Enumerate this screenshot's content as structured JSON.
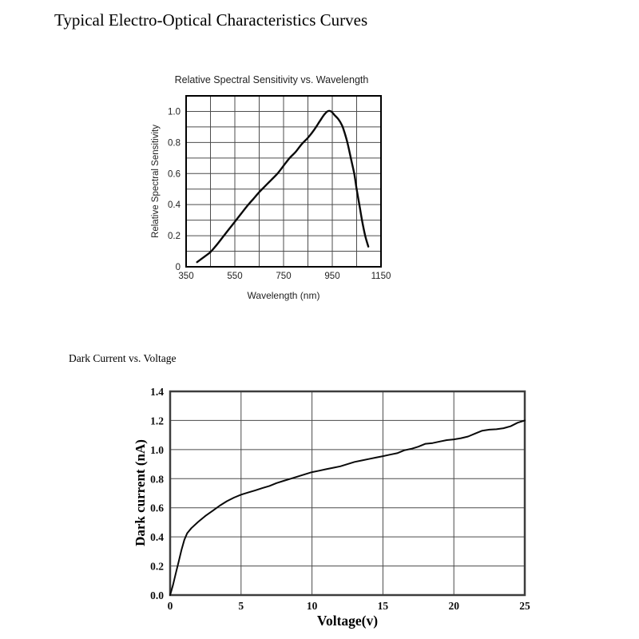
{
  "page": {
    "title": "Typical Electro-Optical Characteristics Curves"
  },
  "chart_data": [
    {
      "id": "spectral-sensitivity",
      "type": "line",
      "title": "Relative Spectral Sensitivity vs. Wavelength",
      "xlabel": "Wavelength (nm)",
      "ylabel": "Relative Spectral Sensitivity",
      "xlim": [
        350,
        1150
      ],
      "ylim": [
        0,
        1.1
      ],
      "x_gridstep": 100,
      "y_gridstep": 0.1,
      "grid": true,
      "legend": "none",
      "xticks": [
        350,
        550,
        750,
        950,
        1150
      ],
      "xtick_labels": [
        "350",
        "550",
        "750",
        "950",
        "1150"
      ],
      "yticks": [
        1.0,
        0.8,
        0.6,
        0.4,
        0.2,
        0
      ],
      "ytick_labels": [
        "1.0",
        "0.8",
        "0.6",
        "0.4",
        "0.2",
        "0"
      ],
      "series": [
        {
          "name": "relative-spectral-sensitivity",
          "smooth": true,
          "points": [
            [
              395,
              0.03
            ],
            [
              425,
              0.065
            ],
            [
              450,
              0.095
            ],
            [
              475,
              0.14
            ],
            [
              500,
              0.19
            ],
            [
              525,
              0.24
            ],
            [
              550,
              0.29
            ],
            [
              575,
              0.34
            ],
            [
              600,
              0.39
            ],
            [
              625,
              0.435
            ],
            [
              650,
              0.48
            ],
            [
              675,
              0.52
            ],
            [
              700,
              0.56
            ],
            [
              725,
              0.6
            ],
            [
              750,
              0.65
            ],
            [
              775,
              0.7
            ],
            [
              800,
              0.74
            ],
            [
              825,
              0.79
            ],
            [
              850,
              0.83
            ],
            [
              875,
              0.88
            ],
            [
              900,
              0.94
            ],
            [
              915,
              0.975
            ],
            [
              930,
              1.0
            ],
            [
              945,
              1.0
            ],
            [
              960,
              0.975
            ],
            [
              975,
              0.95
            ],
            [
              990,
              0.91
            ],
            [
              1000,
              0.865
            ],
            [
              1012,
              0.8
            ],
            [
              1026,
              0.7
            ],
            [
              1040,
              0.6
            ],
            [
              1050,
              0.5
            ],
            [
              1061,
              0.4
            ],
            [
              1072,
              0.3
            ],
            [
              1085,
              0.2
            ],
            [
              1098,
              0.13
            ]
          ]
        }
      ]
    },
    {
      "id": "dark-current",
      "type": "line",
      "title": "Dark Current vs. Voltage",
      "xlabel": "Voltage(v)",
      "ylabel": "Dark current (nA)",
      "xlim": [
        0,
        25
      ],
      "ylim": [
        0,
        1.4
      ],
      "x_gridstep": 5,
      "y_gridstep": 0.2,
      "grid": true,
      "legend": "none",
      "xticks": [
        0,
        5,
        10,
        15,
        20,
        25
      ],
      "xtick_labels": [
        "0",
        "5",
        "10",
        "15",
        "20",
        "25"
      ],
      "yticks": [
        1.4,
        1.2,
        1.0,
        0.8,
        0.6,
        0.4,
        0.2,
        0.0
      ],
      "ytick_labels": [
        "1.4",
        "1.2",
        "1.0",
        "0.8",
        "0.6",
        "0.4",
        "0.2",
        "0.0"
      ],
      "series": [
        {
          "name": "dark-current",
          "smooth": false,
          "points": [
            [
              0,
              0.0
            ],
            [
              0.2,
              0.07
            ],
            [
              0.4,
              0.15
            ],
            [
              0.6,
              0.23
            ],
            [
              0.8,
              0.31
            ],
            [
              1.0,
              0.38
            ],
            [
              1.2,
              0.425
            ],
            [
              1.5,
              0.46
            ],
            [
              2.0,
              0.505
            ],
            [
              2.5,
              0.545
            ],
            [
              3.0,
              0.58
            ],
            [
              3.5,
              0.615
            ],
            [
              4.0,
              0.645
            ],
            [
              4.5,
              0.67
            ],
            [
              5.0,
              0.69
            ],
            [
              5.5,
              0.705
            ],
            [
              6.0,
              0.72
            ],
            [
              6.5,
              0.735
            ],
            [
              7.0,
              0.75
            ],
            [
              7.5,
              0.77
            ],
            [
              8.0,
              0.785
            ],
            [
              8.5,
              0.8
            ],
            [
              9.0,
              0.815
            ],
            [
              9.5,
              0.83
            ],
            [
              10.0,
              0.845
            ],
            [
              10.5,
              0.855
            ],
            [
              11.0,
              0.865
            ],
            [
              11.5,
              0.875
            ],
            [
              12.0,
              0.885
            ],
            [
              12.5,
              0.9
            ],
            [
              13.0,
              0.915
            ],
            [
              13.5,
              0.925
            ],
            [
              14.0,
              0.935
            ],
            [
              14.5,
              0.945
            ],
            [
              15.0,
              0.955
            ],
            [
              15.5,
              0.965
            ],
            [
              16.0,
              0.975
            ],
            [
              16.5,
              0.995
            ],
            [
              17.0,
              1.005
            ],
            [
              17.5,
              1.02
            ],
            [
              18.0,
              1.04
            ],
            [
              18.5,
              1.045
            ],
            [
              19.0,
              1.055
            ],
            [
              19.5,
              1.065
            ],
            [
              20.0,
              1.07
            ],
            [
              20.5,
              1.078
            ],
            [
              21.0,
              1.09
            ],
            [
              21.5,
              1.11
            ],
            [
              22.0,
              1.13
            ],
            [
              22.5,
              1.137
            ],
            [
              23.0,
              1.14
            ],
            [
              23.5,
              1.147
            ],
            [
              24.0,
              1.16
            ],
            [
              24.5,
              1.185
            ],
            [
              25.0,
              1.2
            ]
          ]
        }
      ]
    }
  ]
}
